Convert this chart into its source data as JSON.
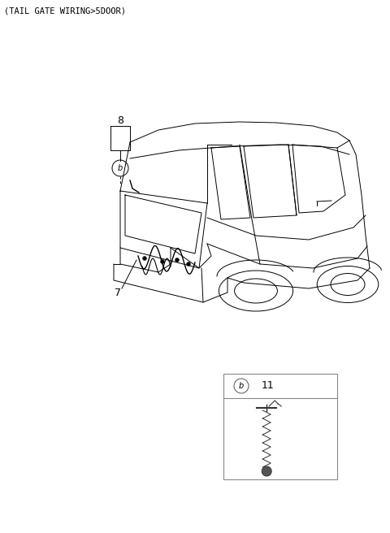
{
  "title": "(TAIL GATE WIRING>5DOOR)",
  "title_fontsize": 7.5,
  "bg_color": "#ffffff",
  "part_label": "11",
  "callout_b_label": "b",
  "fig_w": 4.8,
  "fig_h": 6.56,
  "dpi": 100
}
